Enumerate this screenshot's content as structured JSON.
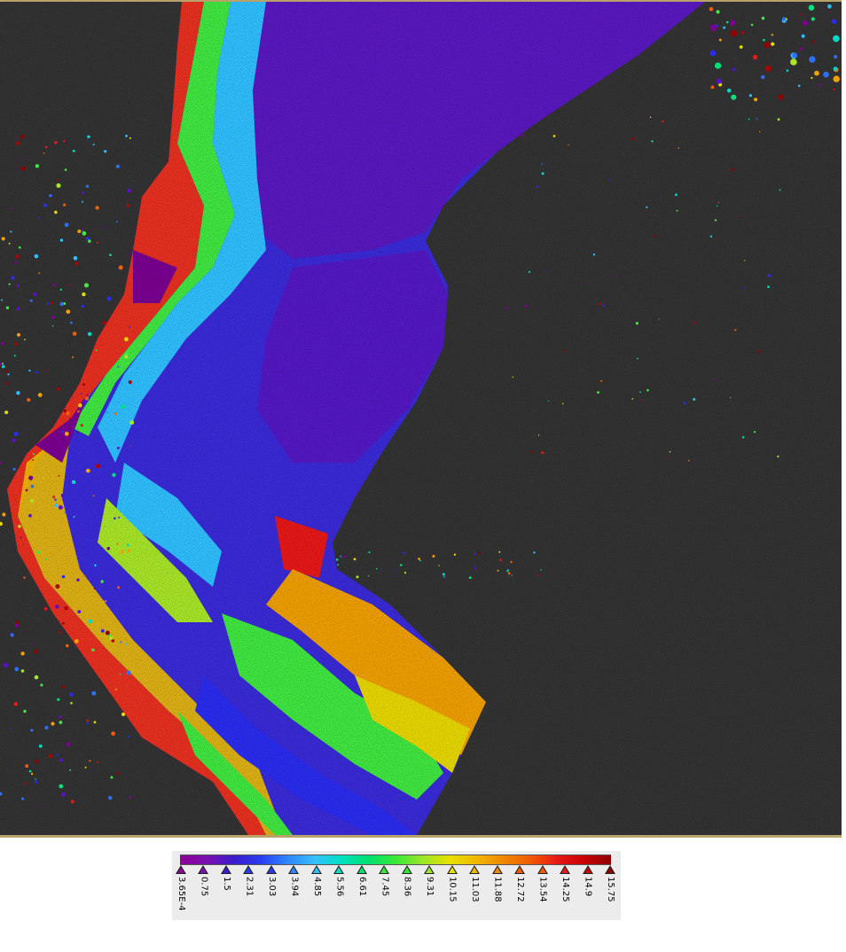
{
  "map": {
    "background_color": "#333333",
    "frame_color": "#b8a26a",
    "palette": [
      "#7a0090",
      "#5a10c8",
      "#2a2cf0",
      "#2f6ef5",
      "#2fc0ff",
      "#00d8c8",
      "#00e07a",
      "#40e840",
      "#a8e628",
      "#e8d800",
      "#f0a000",
      "#f06010",
      "#e81818",
      "#b00000",
      "#900000"
    ]
  },
  "legend": {
    "colors": [
      "#8b0094",
      "#7a10b0",
      "#3a1ccc",
      "#2a3cf0",
      "#2f86ff",
      "#36c0ff",
      "#00e0c0",
      "#00e070",
      "#38e838",
      "#9ae628",
      "#e8e000",
      "#f0b800",
      "#f08800",
      "#f05a00",
      "#e81818",
      "#c80000",
      "#8e0000"
    ],
    "labels": [
      "3.65E-4",
      "0.75",
      "1.5",
      "2.31",
      "3.03",
      "3.94",
      "4.85",
      "5.56",
      "6.61",
      "7.45",
      "8.36",
      "9.31",
      "10.15",
      "11.03",
      "11.88",
      "12.72",
      "13.54",
      "14.25",
      "14.9",
      "15.75"
    ]
  }
}
